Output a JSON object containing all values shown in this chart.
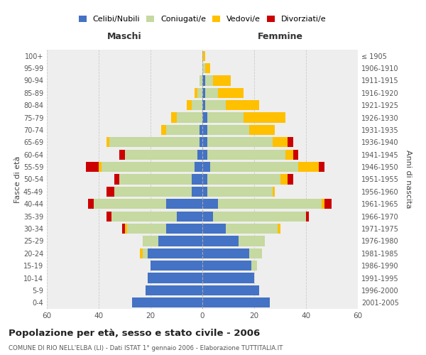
{
  "age_groups": [
    "0-4",
    "5-9",
    "10-14",
    "15-19",
    "20-24",
    "25-29",
    "30-34",
    "35-39",
    "40-44",
    "45-49",
    "50-54",
    "55-59",
    "60-64",
    "65-69",
    "70-74",
    "75-79",
    "80-84",
    "85-89",
    "90-94",
    "95-99",
    "100+"
  ],
  "birth_years": [
    "2001-2005",
    "1996-2000",
    "1991-1995",
    "1986-1990",
    "1981-1985",
    "1976-1980",
    "1971-1975",
    "1966-1970",
    "1961-1965",
    "1956-1960",
    "1951-1955",
    "1946-1950",
    "1941-1945",
    "1936-1940",
    "1931-1935",
    "1926-1930",
    "1921-1925",
    "1916-1920",
    "1911-1915",
    "1906-1910",
    "≤ 1905"
  ],
  "males": {
    "celibi": [
      27,
      22,
      21,
      20,
      21,
      17,
      14,
      10,
      14,
      4,
      4,
      3,
      2,
      1,
      1,
      0,
      0,
      0,
      0,
      0,
      0
    ],
    "coniugati": [
      0,
      0,
      0,
      0,
      2,
      6,
      15,
      25,
      28,
      30,
      28,
      36,
      28,
      35,
      13,
      10,
      4,
      2,
      1,
      0,
      0
    ],
    "vedovi": [
      0,
      0,
      0,
      0,
      1,
      0,
      1,
      0,
      0,
      0,
      0,
      1,
      0,
      1,
      2,
      2,
      2,
      1,
      0,
      0,
      0
    ],
    "divorziati": [
      0,
      0,
      0,
      0,
      0,
      0,
      1,
      2,
      2,
      3,
      2,
      5,
      2,
      0,
      0,
      0,
      0,
      0,
      0,
      0,
      0
    ]
  },
  "females": {
    "nubili": [
      26,
      22,
      20,
      19,
      18,
      14,
      9,
      4,
      6,
      2,
      2,
      3,
      2,
      2,
      2,
      2,
      1,
      1,
      1,
      0,
      0
    ],
    "coniugate": [
      0,
      0,
      0,
      2,
      5,
      10,
      20,
      36,
      40,
      25,
      28,
      34,
      30,
      25,
      16,
      14,
      8,
      5,
      3,
      1,
      0
    ],
    "vedove": [
      0,
      0,
      0,
      0,
      0,
      0,
      1,
      0,
      1,
      1,
      3,
      8,
      3,
      6,
      10,
      16,
      13,
      10,
      7,
      2,
      1
    ],
    "divorziate": [
      0,
      0,
      0,
      0,
      0,
      0,
      0,
      1,
      3,
      0,
      2,
      2,
      2,
      2,
      0,
      0,
      0,
      0,
      0,
      0,
      0
    ]
  },
  "colors": {
    "celibi": "#4472c4",
    "coniugati": "#c5d9a0",
    "vedovi": "#ffc000",
    "divorziati": "#cc0000"
  },
  "title": "Popolazione per età, sesso e stato civile - 2006",
  "subtitle": "COMUNE DI RIO NELL'ELBA (LI) - Dati ISTAT 1° gennaio 2006 - Elaborazione TUTTITALIA.IT",
  "xlabel_left": "Maschi",
  "xlabel_right": "Femmine",
  "ylabel_left": "Fasce di età",
  "ylabel_right": "Anni di nascita",
  "xlim": 60,
  "legend_labels": [
    "Celibi/Nubili",
    "Coniugati/e",
    "Vedovi/e",
    "Divorziati/e"
  ],
  "bg_color": "#ffffff",
  "plot_bg": "#eeeeee",
  "grid_color": "#cccccc"
}
